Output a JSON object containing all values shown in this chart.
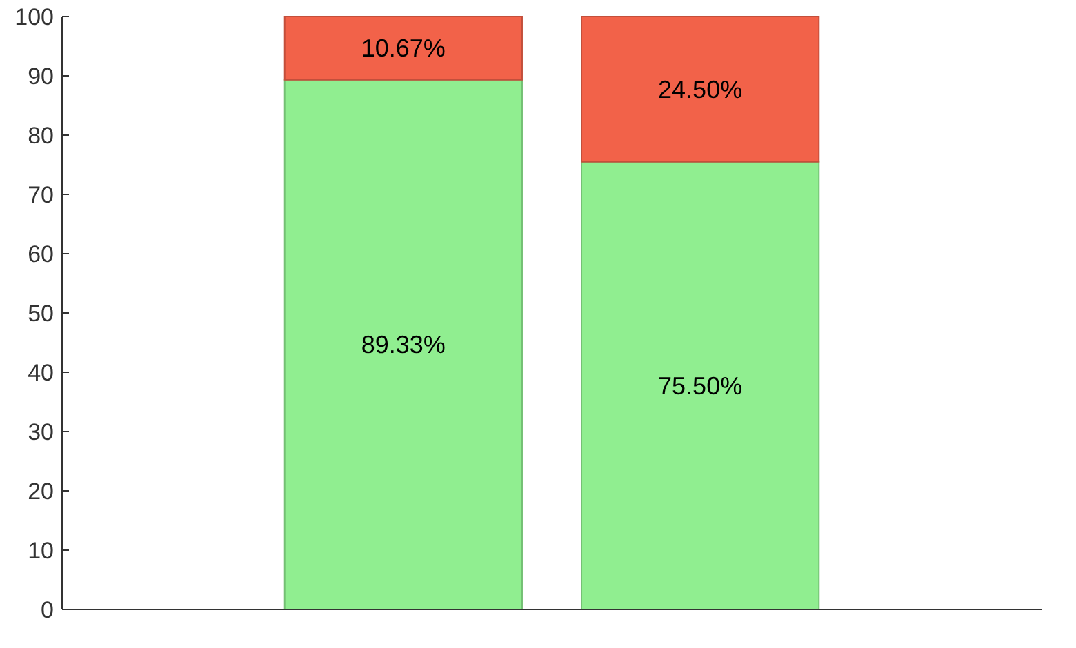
{
  "chart_data": {
    "type": "bar",
    "stacked": true,
    "categories": [
      null,
      null
    ],
    "series": [
      {
        "color": "#90ee90",
        "values": [
          89.33,
          75.5
        ],
        "value_labels": [
          "89.33%",
          "75.50%"
        ]
      },
      {
        "color": "#f26249",
        "values": [
          10.67,
          24.5
        ],
        "value_labels": [
          "10.67%",
          "24.50%"
        ]
      }
    ],
    "ylim": [
      0,
      100
    ],
    "yticks": [
      0,
      10,
      20,
      30,
      40,
      50,
      60,
      70,
      80,
      90,
      100
    ],
    "grid": false
  }
}
